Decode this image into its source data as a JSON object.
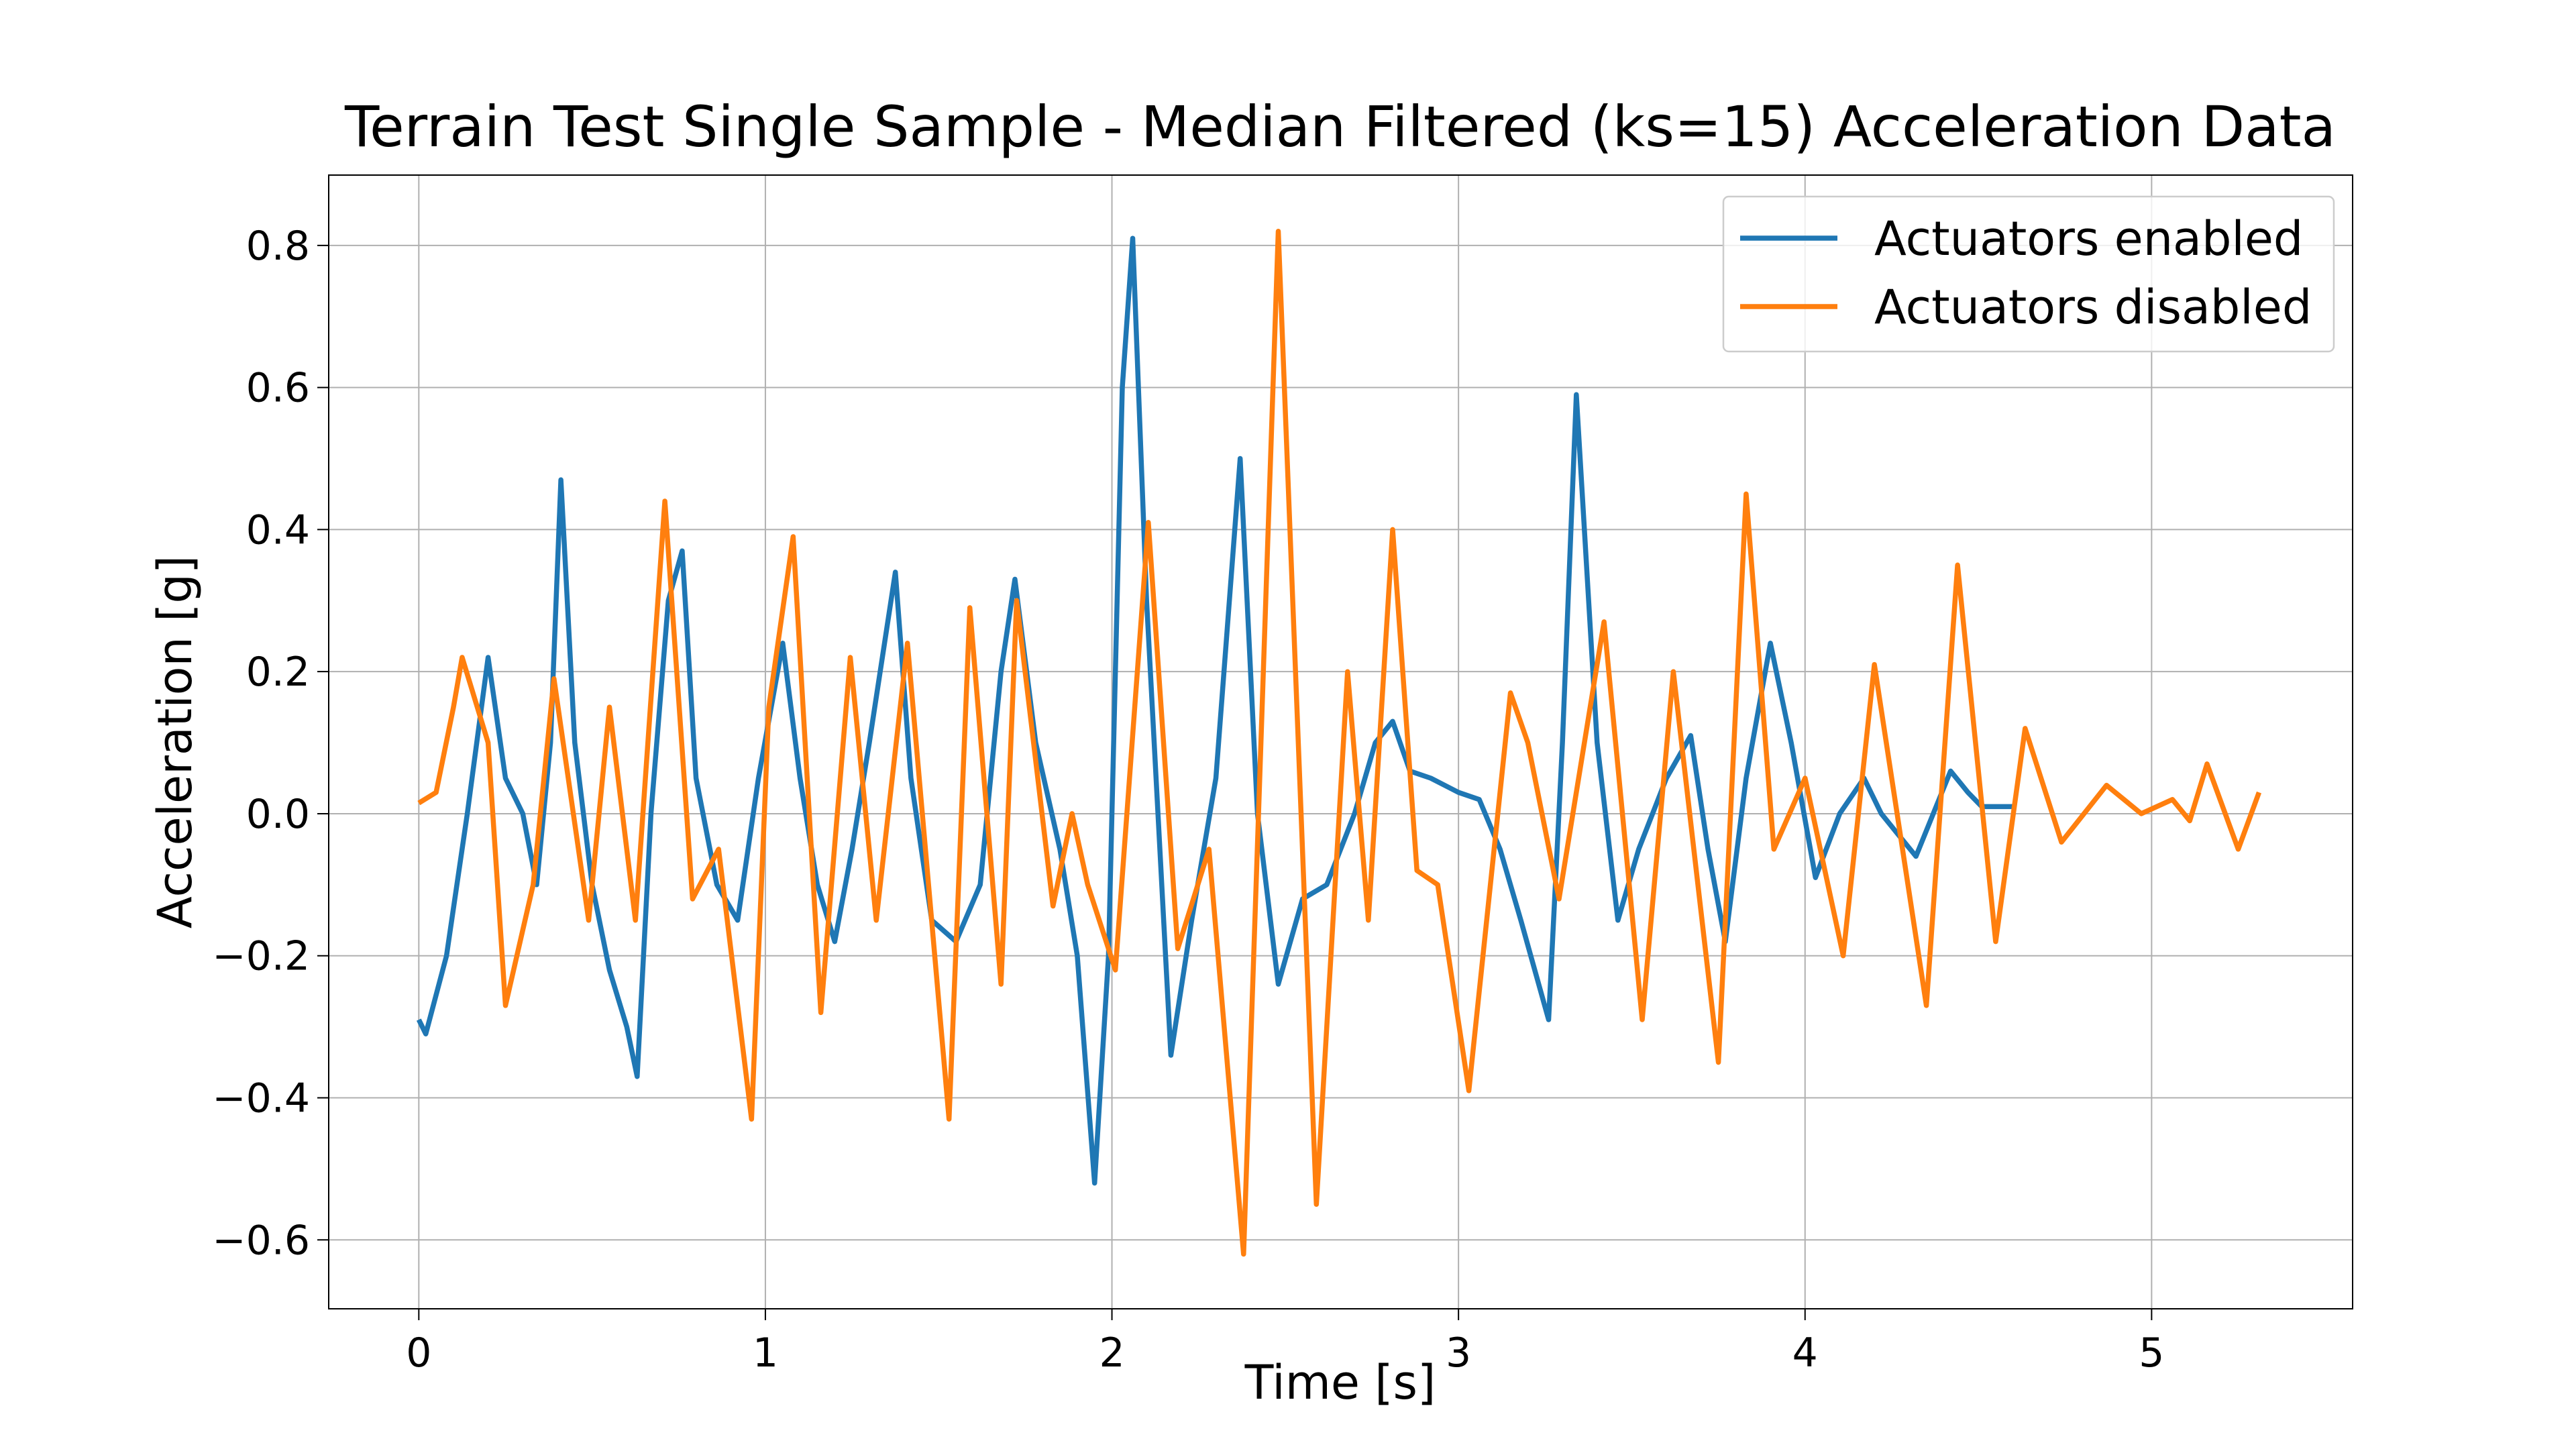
{
  "chart_data": {
    "type": "line",
    "title": "Terrain Test Single Sample - Median Filtered (ks=15) Acceleration Data",
    "xlabel": "Time [s]",
    "ylabel": "Acceleration [g]",
    "xlim": [
      -0.26,
      5.58
    ],
    "ylim": [
      -0.697,
      0.899
    ],
    "xticks": [
      0,
      1,
      2,
      3,
      4,
      5
    ],
    "yticks": [
      {
        "value": -0.6,
        "label": "−0.6"
      },
      {
        "value": -0.4,
        "label": "−0.4"
      },
      {
        "value": -0.2,
        "label": "−0.2"
      },
      {
        "value": 0,
        "label": "0.0"
      },
      0.2,
      0.4,
      0.6,
      0.8
    ],
    "grid": true,
    "legend": "upper right",
    "series": [
      {
        "name": "Actuators enabled",
        "color": "#1f77b4",
        "x": [
          0,
          0.02,
          0.08,
          0.14,
          0.2,
          0.25,
          0.3,
          0.34,
          0.38,
          0.41,
          0.45,
          0.5,
          0.55,
          0.6,
          0.63,
          0.67,
          0.72,
          0.76,
          0.8,
          0.86,
          0.92,
          0.98,
          1.05,
          1.1,
          1.15,
          1.2,
          1.25,
          1.3,
          1.375,
          1.42,
          1.48,
          1.55,
          1.62,
          1.68,
          1.72,
          1.78,
          1.85,
          1.9,
          1.95,
          1.99,
          2.03,
          2.06,
          2.1,
          2.17,
          2.23,
          2.3,
          2.37,
          2.42,
          2.48,
          2.55,
          2.62,
          2.7,
          2.76,
          2.81,
          2.86,
          2.92,
          3.0,
          3.06,
          3.12,
          3.18,
          3.26,
          3.3,
          3.34,
          3.4,
          3.46,
          3.52,
          3.6,
          3.67,
          3.72,
          3.77,
          3.83,
          3.9,
          3.96,
          4.03,
          4.1,
          4.17,
          4.22,
          4.27,
          4.32,
          4.37,
          4.42,
          4.47,
          4.51,
          4.56,
          4.6
        ],
        "values": [
          -0.29,
          -0.31,
          -0.2,
          0.0,
          0.22,
          0.05,
          0.0,
          -0.1,
          0.1,
          0.47,
          0.1,
          -0.1,
          -0.22,
          -0.3,
          -0.37,
          0.0,
          0.3,
          0.37,
          0.05,
          -0.1,
          -0.15,
          0.05,
          0.24,
          0.05,
          -0.1,
          -0.18,
          -0.05,
          0.1,
          0.34,
          0.05,
          -0.15,
          -0.18,
          -0.1,
          0.2,
          0.33,
          0.1,
          -0.05,
          -0.2,
          -0.52,
          -0.2,
          0.6,
          0.81,
          0.3,
          -0.34,
          -0.15,
          0.05,
          0.5,
          0.0,
          -0.24,
          -0.12,
          -0.1,
          0.0,
          0.1,
          0.13,
          0.06,
          0.05,
          0.03,
          0.02,
          -0.05,
          -0.15,
          -0.29,
          0.1,
          0.59,
          0.1,
          -0.15,
          -0.05,
          0.05,
          0.11,
          -0.05,
          -0.18,
          0.05,
          0.24,
          0.1,
          -0.09,
          0.0,
          0.05,
          0.0,
          -0.03,
          -0.06,
          0.0,
          0.06,
          0.03,
          0.01,
          0.01,
          0.01
        ]
      },
      {
        "name": "Actuators disabled",
        "color": "#ff7f0e",
        "x": [
          0,
          0.05,
          0.1,
          0.125,
          0.2,
          0.25,
          0.33,
          0.39,
          0.49,
          0.55,
          0.625,
          0.71,
          0.79,
          0.865,
          0.96,
          1.01,
          1.08,
          1.16,
          1.245,
          1.32,
          1.41,
          1.53,
          1.59,
          1.68,
          1.725,
          1.83,
          1.885,
          1.93,
          2.01,
          2.105,
          2.19,
          2.28,
          2.38,
          2.48,
          2.59,
          2.68,
          2.74,
          2.81,
          2.88,
          2.94,
          3.03,
          3.15,
          3.2,
          3.29,
          3.42,
          3.53,
          3.62,
          3.75,
          3.83,
          3.91,
          4.0,
          4.11,
          4.2,
          4.35,
          4.44,
          4.55,
          4.635,
          4.74,
          4.87,
          4.97,
          5.06,
          5.11,
          5.16,
          5.25,
          5.31
        ],
        "values": [
          0.015,
          0.03,
          0.15,
          0.22,
          0.1,
          -0.27,
          -0.1,
          0.19,
          -0.15,
          0.15,
          -0.15,
          0.44,
          -0.12,
          -0.05,
          -0.43,
          0.15,
          0.39,
          -0.28,
          0.22,
          -0.15,
          0.24,
          -0.43,
          0.29,
          -0.24,
          0.3,
          -0.13,
          0.0,
          -0.1,
          -0.22,
          0.41,
          -0.19,
          -0.05,
          -0.62,
          0.82,
          -0.55,
          0.2,
          -0.15,
          0.4,
          -0.08,
          -0.1,
          -0.39,
          0.17,
          0.1,
          -0.12,
          0.27,
          -0.29,
          0.2,
          -0.35,
          0.45,
          -0.05,
          0.05,
          -0.2,
          0.21,
          -0.27,
          0.35,
          -0.18,
          0.12,
          -0.04,
          0.04,
          0.0,
          0.02,
          -0.01,
          0.07,
          -0.05,
          0.03
        ]
      }
    ]
  }
}
